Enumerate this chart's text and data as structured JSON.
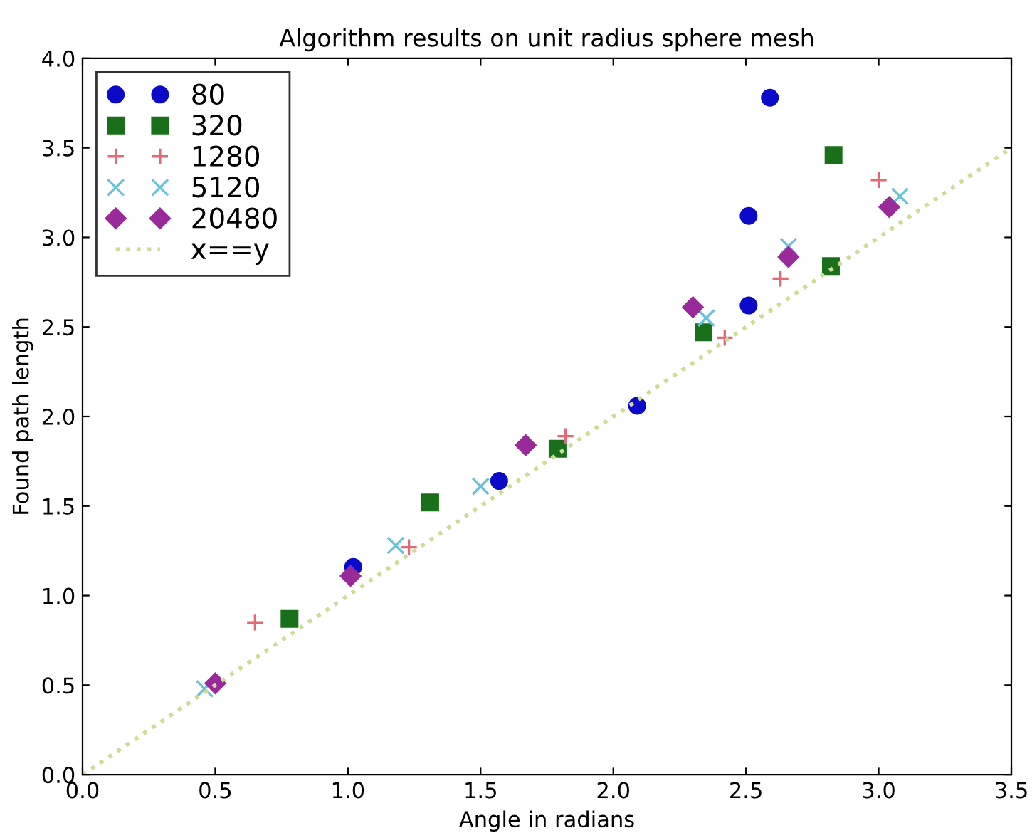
{
  "chart_data": {
    "type": "scatter",
    "title": "Algorithm results on unit radius sphere mesh",
    "xlabel": "Angle in radians",
    "ylabel": "Found path length",
    "xlim": [
      0,
      3.5
    ],
    "ylim": [
      0,
      4.0
    ],
    "xticks": [
      {
        "value": 0,
        "label": "0.0"
      },
      0.5,
      {
        "value": 1,
        "label": "1.0"
      },
      1.5,
      {
        "value": 2,
        "label": "2.0"
      },
      2.5,
      {
        "value": 3,
        "label": "3.0"
      },
      3.5
    ],
    "yticks": [
      {
        "value": 0,
        "label": "0.0"
      },
      0.5,
      {
        "value": 1,
        "label": "1.0"
      },
      1.5,
      {
        "value": 2,
        "label": "2.0"
      },
      2.5,
      {
        "value": 3,
        "label": "3.0"
      },
      3.5,
      {
        "value": 4,
        "label": "4.0"
      }
    ],
    "grid": false,
    "legend": "top left",
    "series": [
      {
        "name": "80",
        "color": "#0a0ac8",
        "marker": "circle",
        "x": [
          1.02,
          1.57,
          2.09,
          2.51,
          2.51,
          2.59
        ],
        "values": [
          1.16,
          1.64,
          2.06,
          2.62,
          3.12,
          3.78
        ]
      },
      {
        "name": "320",
        "color": "#1a701a",
        "marker": "square",
        "x": [
          0.78,
          1.31,
          1.79,
          2.34,
          2.82,
          2.83
        ],
        "values": [
          0.87,
          1.52,
          1.82,
          2.47,
          2.84,
          3.46
        ]
      },
      {
        "name": "1280",
        "color": "#e06a78",
        "marker": "plus",
        "x": [
          0.65,
          1.23,
          1.82,
          2.42,
          2.63,
          3.0
        ],
        "values": [
          0.85,
          1.27,
          1.89,
          2.44,
          2.77,
          3.32
        ]
      },
      {
        "name": "5120",
        "color": "#66c4dc",
        "marker": "cross",
        "x": [
          0.46,
          1.18,
          1.5,
          2.35,
          2.66,
          3.08
        ],
        "values": [
          0.48,
          1.28,
          1.61,
          2.55,
          2.95,
          3.23
        ]
      },
      {
        "name": "20480",
        "color": "#982a9a",
        "marker": "diamond",
        "x": [
          0.5,
          1.01,
          1.67,
          2.3,
          2.66,
          3.04
        ],
        "values": [
          0.51,
          1.11,
          1.84,
          2.61,
          2.89,
          3.17
        ]
      },
      {
        "name": "x==y",
        "type": "line",
        "line_style": "dotted",
        "marker": "none",
        "color": "#cfdc98",
        "x": [
          0,
          3.5
        ],
        "values": [
          0,
          3.5
        ]
      }
    ]
  }
}
